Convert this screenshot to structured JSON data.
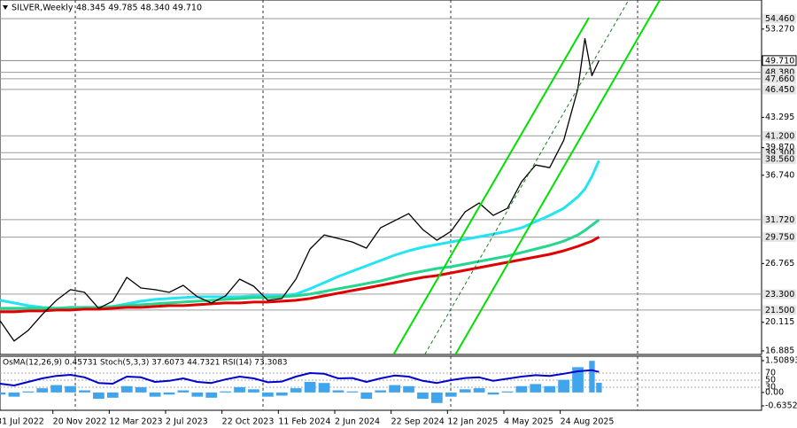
{
  "chart_data": [
    {
      "type": "line",
      "title": "SILVER,Weekly",
      "subtitle": "48.345 49.785 48.340 49.710",
      "x": [
        "2022-08-07",
        "2022-09-04",
        "2022-10-02",
        "2022-10-30",
        "2022-11-27",
        "2022-12-25",
        "2023-01-22",
        "2023-02-19",
        "2023-03-19",
        "2023-04-16",
        "2023-05-14",
        "2023-06-11",
        "2023-07-09",
        "2023-08-06",
        "2023-09-03",
        "2023-10-01",
        "2023-10-29",
        "2023-11-26",
        "2023-12-24",
        "2024-01-21",
        "2024-02-18",
        "2024-03-17",
        "2024-04-14",
        "2024-05-12",
        "2024-06-09",
        "2024-07-07",
        "2024-08-04",
        "2024-09-01",
        "2024-09-29",
        "2024-10-27",
        "2024-11-24",
        "2024-12-22",
        "2025-01-19",
        "2025-02-16",
        "2025-03-16",
        "2025-04-13",
        "2025-05-11",
        "2025-06-08",
        "2025-07-06",
        "2025-08-03",
        "2025-08-31",
        "2025-09-28",
        "2025-10-12",
        "2025-10-26",
        "2025-11-09"
      ],
      "xlim": [
        "2022-08-07",
        "2026-09-28"
      ],
      "xticks": [
        {
          "value": "2022-07-31",
          "label": "31 Jul 2022"
        },
        {
          "value": "2022-11-20",
          "label": "20 Nov 2022"
        },
        {
          "value": "2023-03-12",
          "label": "12 Mar 2023"
        },
        {
          "value": "2023-07-02",
          "label": "2 Jul 2023"
        },
        {
          "value": "2023-10-22",
          "label": "22 Oct 2023"
        },
        {
          "value": "2024-02-11",
          "label": "11 Feb 2024"
        },
        {
          "value": "2024-06-02",
          "label": "2 Jun 2024"
        },
        {
          "value": "2024-09-22",
          "label": "22 Sep 2024"
        },
        {
          "value": "2025-01-12",
          "label": "12 Jan 2025"
        },
        {
          "value": "2025-05-04",
          "label": "4 May 2025"
        },
        {
          "value": "2025-08-24",
          "label": "24 Aug 2025"
        }
      ],
      "ylim": [
        16.48,
        56.56
      ],
      "yticks": [
        {
          "value": 53.27,
          "label": "53.270"
        },
        {
          "value": 43.295,
          "label": "43.295"
        },
        {
          "value": 39.87,
          "label": "39.870"
        },
        {
          "value": 36.74,
          "label": "36.740"
        },
        {
          "value": 26.765,
          "label": "26.765"
        },
        {
          "value": 20.115,
          "label": "20.115"
        },
        {
          "value": 16.885,
          "label": "16.885"
        }
      ],
      "levels": [
        {
          "value": 54.46,
          "label": "54.460"
        },
        {
          "value": 48.38,
          "label": "48.380"
        },
        {
          "value": 47.66,
          "label": "47.660"
        },
        {
          "value": 46.45,
          "label": "46.450"
        },
        {
          "value": 41.2,
          "label": "41.200"
        },
        {
          "value": 39.3,
          "label": "39.300"
        },
        {
          "value": 38.56,
          "label": "38.560"
        },
        {
          "value": 31.72,
          "label": "31.720"
        },
        {
          "value": 29.75,
          "label": "29.750"
        },
        {
          "value": 23.3,
          "label": "23.300"
        },
        {
          "value": 21.5,
          "label": "21.500"
        },
        {
          "value": 49.71,
          "label": "49.710"
        }
      ],
      "series": [
        {
          "color": "#22e4f2",
          "values": [
            22.6,
            22.3,
            22.0,
            21.8,
            21.7,
            21.7,
            21.8,
            21.8,
            21.9,
            22.2,
            22.5,
            22.7,
            22.8,
            22.9,
            23.0,
            23.0,
            23.0,
            23.0,
            23.1,
            23.1,
            23.1,
            23.3,
            23.9,
            24.6,
            25.3,
            25.9,
            26.5,
            27.1,
            27.7,
            28.2,
            28.6,
            28.9,
            29.2,
            29.5,
            29.8,
            30.1,
            30.4,
            30.8,
            31.5,
            32.2,
            33.0,
            34.3,
            35.2,
            36.6,
            38.4
          ]
        },
        {
          "color": "#25d68e",
          "values": [
            21.7,
            21.7,
            21.7,
            21.7,
            21.7,
            21.8,
            21.8,
            21.8,
            21.9,
            22.0,
            22.1,
            22.2,
            22.3,
            22.4,
            22.5,
            22.6,
            22.7,
            22.8,
            22.9,
            22.9,
            23.0,
            23.1,
            23.3,
            23.6,
            23.9,
            24.2,
            24.5,
            24.8,
            25.2,
            25.6,
            25.9,
            26.2,
            26.4,
            26.7,
            27.0,
            27.3,
            27.6,
            28.0,
            28.4,
            28.8,
            29.3,
            30.0,
            30.5,
            31.1,
            31.7
          ]
        },
        {
          "color": "#e00000",
          "values": [
            21.3,
            21.3,
            21.4,
            21.4,
            21.5,
            21.5,
            21.6,
            21.6,
            21.7,
            21.8,
            21.8,
            21.9,
            22.0,
            22.0,
            22.1,
            22.2,
            22.3,
            22.3,
            22.4,
            22.4,
            22.5,
            22.6,
            22.8,
            23.1,
            23.4,
            23.7,
            24.0,
            24.3,
            24.6,
            24.9,
            25.2,
            25.4,
            25.7,
            26.0,
            26.3,
            26.6,
            26.9,
            27.2,
            27.5,
            27.8,
            28.2,
            28.7,
            29.0,
            29.3,
            29.75
          ]
        },
        {
          "color": "#000000",
          "values": [
            20.3,
            18.0,
            19.2,
            21.0,
            22.6,
            23.8,
            23.5,
            21.7,
            22.5,
            25.2,
            24.0,
            23.8,
            23.5,
            24.3,
            23.0,
            22.3,
            23.1,
            25.0,
            24.2,
            22.6,
            22.8,
            25.0,
            28.4,
            30.0,
            29.6,
            29.2,
            28.5,
            30.8,
            31.6,
            32.4,
            30.6,
            29.4,
            30.4,
            32.6,
            33.6,
            32.2,
            33.0,
            36.0,
            37.9,
            37.6,
            40.7,
            46.5,
            52.2,
            48.0,
            49.71
          ]
        }
      ],
      "lines": [
        {
          "color": "#00e000",
          "x": [
            "2024-09-27",
            "2025-10-20"
          ],
          "values": [
            16.48,
            54.56
          ]
        },
        {
          "color": "#00e000",
          "x": [
            "2025-01-28",
            "2026-03-10"
          ],
          "values": [
            16.48,
            56.56
          ]
        },
        {
          "color": "#1f7a1f",
          "dashed": true,
          "x": [
            "2024-11-28",
            "2026-01-07"
          ],
          "values": [
            16.48,
            56.56
          ]
        }
      ]
    },
    {
      "type": "line",
      "title": "OsMA(12,26,9) 0.45731 Stoch(5,3,3) 37.6073 44.7321 RSI(14) 73.3083",
      "x": [
        "2022-08-07",
        "2022-09-04",
        "2022-10-02",
        "2022-10-30",
        "2022-11-27",
        "2022-12-25",
        "2023-01-22",
        "2023-02-19",
        "2023-03-19",
        "2023-04-16",
        "2023-05-14",
        "2023-06-11",
        "2023-07-09",
        "2023-08-06",
        "2023-09-03",
        "2023-10-01",
        "2023-10-29",
        "2023-11-26",
        "2023-12-24",
        "2024-01-21",
        "2024-02-18",
        "2024-03-17",
        "2024-04-14",
        "2024-05-12",
        "2024-06-09",
        "2024-07-07",
        "2024-08-04",
        "2024-09-01",
        "2024-09-29",
        "2024-10-27",
        "2024-11-24",
        "2024-12-22",
        "2025-01-19",
        "2025-02-16",
        "2025-03-16",
        "2025-04-13",
        "2025-05-11",
        "2025-06-08",
        "2025-07-06",
        "2025-08-03",
        "2025-08-31",
        "2025-09-28",
        "2025-10-26",
        "2025-11-09"
      ],
      "xlim": [
        "2022-08-07",
        "2026-09-28"
      ],
      "ylim": [
        -0.8034,
        1.719
      ],
      "yticks": [
        {
          "value": 1.50893,
          "label": "1.50893"
        },
        {
          "value": 0,
          "label": "0.00"
        },
        {
          "value": -0.63522,
          "label": "-0.63522"
        }
      ],
      "y2lim": [
        -32.5,
        117.5
      ],
      "y2ticks": [
        70,
        50,
        30
      ],
      "series": [
        {
          "type": "bar",
          "color": "#41a5ee",
          "values": [
            -0.1,
            -0.2,
            0.05,
            0.2,
            0.35,
            0.3,
            0.1,
            -0.3,
            -0.25,
            0.3,
            0.25,
            -0.2,
            -0.1,
            0.1,
            -0.2,
            -0.25,
            0.05,
            0.25,
            0.15,
            -0.2,
            -0.15,
            0.2,
            0.5,
            0.45,
            0.1,
            0.05,
            -0.3,
            0.1,
            0.35,
            0.3,
            -0.3,
            -0.5,
            -0.2,
            0.15,
            0.2,
            -0.1,
            0.05,
            0.3,
            0.4,
            0.3,
            0.6,
            1.2,
            1.5,
            0.46
          ]
        },
        {
          "type": "line",
          "axis": "y2",
          "color": "#0000cd",
          "values": [
            40,
            35,
            45,
            55,
            62,
            65,
            58,
            42,
            40,
            60,
            58,
            45,
            48,
            55,
            45,
            42,
            52,
            60,
            55,
            44,
            46,
            60,
            70,
            68,
            55,
            56,
            45,
            55,
            63,
            60,
            48,
            42,
            50,
            56,
            58,
            48,
            54,
            60,
            64,
            62,
            68,
            75,
            78,
            73.3
          ]
        }
      ]
    }
  ]
}
